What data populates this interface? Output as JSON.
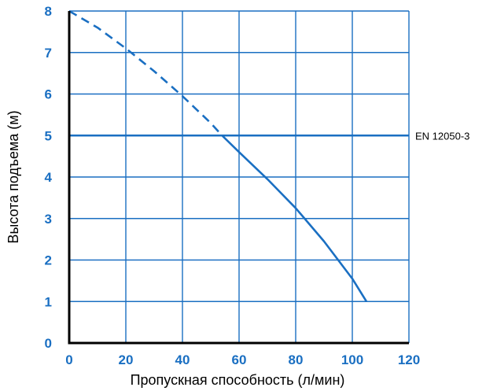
{
  "chart_data": {
    "type": "line",
    "title": "",
    "xlabel": "Пропускная способность (л/мин)",
    "ylabel": "Высота подъема (м)",
    "xlim": [
      0,
      120
    ],
    "ylim": [
      0,
      8
    ],
    "xticks": [
      "0",
      "20",
      "40",
      "60",
      "80",
      "100",
      "120"
    ],
    "yticks": [
      "0",
      "1",
      "2",
      "3",
      "4",
      "5",
      "6",
      "7",
      "8"
    ],
    "grid": true,
    "series": [
      {
        "segment": "dashed",
        "x": [
          0,
          10,
          20,
          30,
          40,
          50,
          54
        ],
        "y": [
          8,
          7.6,
          7.1,
          6.55,
          5.95,
          5.3,
          5.0
        ]
      },
      {
        "segment": "solid",
        "x": [
          54,
          60,
          70,
          80,
          90,
          100,
          105
        ],
        "y": [
          5.0,
          4.6,
          3.95,
          3.25,
          2.45,
          1.55,
          1.0
        ]
      }
    ],
    "reference_lines": [
      {
        "y": 5,
        "label": "EN 12050-3"
      }
    ],
    "colors": {
      "tick_label": "#1a6fc2",
      "grid": "#1a6fc2",
      "curve": "#1a6fc2",
      "axis": "#000000"
    }
  }
}
